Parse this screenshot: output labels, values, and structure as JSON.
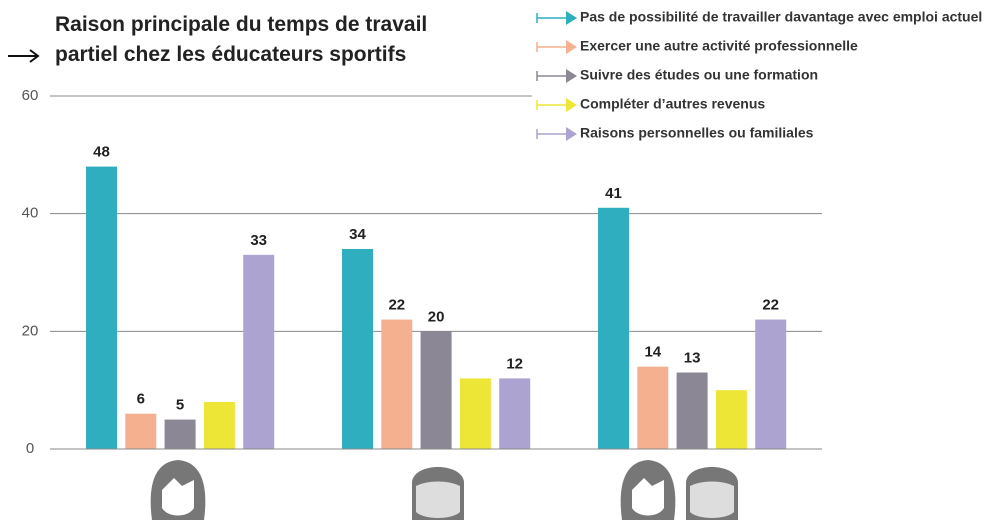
{
  "chart_data": {
    "type": "bar",
    "title": "Raison principale du temps de travail partiel chez les éducateurs sportifs",
    "categories": [
      null,
      null,
      null
    ],
    "series": [
      {
        "name": "Pas de possibilité de travailler davantage avec emploi actuel",
        "color": "#2eaebf",
        "values": [
          48,
          34,
          41
        ],
        "value_labels": [
          "48",
          "34",
          "41"
        ]
      },
      {
        "name": "Exercer une autre activité professionnelle",
        "color": "#f4b08f",
        "values": [
          6,
          22,
          14
        ],
        "value_labels": [
          "6",
          "22",
          "14"
        ]
      },
      {
        "name": "Suivre des études ou une formation",
        "color": "#8c8794",
        "values": [
          5,
          20,
          13
        ],
        "value_labels": [
          "5",
          "20",
          "13"
        ]
      },
      {
        "name": "Compléter d’autres revenus",
        "color": "#ede637",
        "values": [
          8,
          12,
          10
        ],
        "value_labels": [
          null,
          null,
          null
        ]
      },
      {
        "name": "Raisons personnelles ou familiales",
        "color": "#ada3d0",
        "values": [
          33,
          12,
          22
        ],
        "value_labels": [
          "33",
          "12",
          "22"
        ]
      }
    ],
    "ylim": [
      0,
      60
    ],
    "yticks": [
      0,
      20,
      40,
      60
    ],
    "grid": true
  }
}
